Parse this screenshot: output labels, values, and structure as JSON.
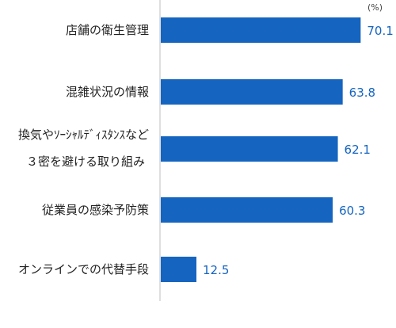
{
  "chart_data": {
    "type": "bar",
    "orientation": "horizontal",
    "unit": "(%)",
    "categories": [
      [
        "店舗の衛生管理"
      ],
      [
        "混雑状況の情報"
      ],
      [
        "換気やｿｰｼｬﾙﾃﾞｨｽﾀﾝｽなど",
        "３密を避ける取り組み"
      ],
      [
        "従業員の感染予防策"
      ],
      [
        "オンラインでの代替手段"
      ]
    ],
    "values": [
      70.1,
      63.8,
      62.1,
      60.3,
      12.5
    ],
    "xlim": [
      0,
      100
    ],
    "grid": false,
    "legend": "none",
    "colors": {
      "bar": "#1565c0",
      "value_label": "#1565c0",
      "axis": "#bfbfbf"
    }
  }
}
